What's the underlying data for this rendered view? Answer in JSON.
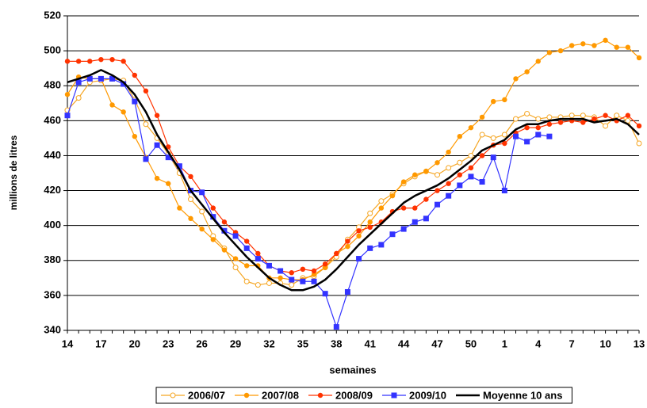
{
  "chart_data": {
    "type": "line",
    "y_label": "millions de litres",
    "x_label": "semaines",
    "categories": [
      "14",
      null,
      null,
      "17",
      null,
      null,
      "20",
      null,
      null,
      "23",
      null,
      null,
      "26",
      null,
      null,
      "29",
      null,
      null,
      "32",
      null,
      null,
      "35",
      null,
      null,
      "38",
      null,
      null,
      "41",
      null,
      null,
      "44",
      null,
      null,
      "47",
      null,
      null,
      "50",
      null,
      null,
      "1",
      null,
      null,
      "4",
      null,
      null,
      "7",
      null,
      null,
      "10",
      null,
      null,
      "13"
    ],
    "ylim": [
      340,
      520
    ],
    "yticks": [
      340,
      360,
      380,
      400,
      420,
      440,
      460,
      480,
      500,
      520
    ],
    "grid": true,
    "legend": "bottom",
    "series": [
      {
        "name": "2006/07",
        "color": "#f5a623",
        "marker": "open-circle",
        "values": [
          466,
          473,
          482,
          483,
          484,
          483,
          472,
          458,
          450,
          441,
          430,
          415,
          408,
          394,
          387,
          376,
          368,
          366,
          367,
          367,
          366,
          370,
          371,
          376,
          382,
          392,
          399,
          407,
          414,
          418,
          424,
          428,
          431,
          429,
          433,
          436,
          440,
          452,
          450,
          452,
          461,
          464,
          461,
          462,
          462,
          463,
          463,
          462,
          457,
          463,
          460,
          447
        ]
      },
      {
        "name": "2007/08",
        "color": "#ff9900",
        "marker": "circle",
        "values": [
          475,
          485,
          484,
          484,
          469,
          465,
          451,
          439,
          427,
          424,
          410,
          404,
          398,
          392,
          386,
          381,
          377,
          377,
          370,
          370,
          369,
          369,
          372,
          376,
          384,
          388,
          394,
          402,
          410,
          417,
          425,
          429,
          431,
          436,
          442,
          451,
          456,
          462,
          471,
          472,
          484,
          488,
          494,
          499,
          500,
          503,
          504,
          503,
          506,
          502,
          502,
          496
        ]
      },
      {
        "name": "2008/09",
        "color": "#ff3300",
        "marker": "circle",
        "values": [
          494,
          494,
          494,
          495,
          495,
          494,
          486,
          477,
          463,
          445,
          434,
          428,
          419,
          410,
          402,
          396,
          391,
          384,
          377,
          374,
          373,
          375,
          374,
          378,
          384,
          391,
          397,
          399,
          402,
          408,
          410,
          410,
          415,
          420,
          424,
          429,
          433,
          440,
          446,
          447,
          453,
          456,
          456,
          458,
          459,
          460,
          459,
          461,
          463,
          460,
          463,
          457
        ]
      },
      {
        "name": "2009/10",
        "color": "#3333ff",
        "marker": "square",
        "values": [
          463,
          482,
          484,
          484,
          484,
          481,
          471,
          438,
          446,
          439,
          434,
          420,
          419,
          405,
          397,
          394,
          387,
          381,
          377,
          374,
          369,
          368,
          368,
          361,
          342,
          362,
          381,
          387,
          389,
          395,
          398,
          402,
          404,
          412,
          417,
          423,
          428,
          425,
          439,
          420,
          451,
          448,
          452,
          451,
          null,
          null,
          null,
          null,
          null,
          null,
          null,
          null
        ]
      },
      {
        "name": "Moyenne 10 ans",
        "color": "#000000",
        "marker": "none",
        "values": [
          482,
          484,
          486,
          489,
          486,
          482,
          475,
          465,
          452,
          442,
          432,
          420,
          412,
          404,
          396,
          389,
          382,
          376,
          370,
          366,
          363,
          363,
          365,
          369,
          375,
          382,
          389,
          395,
          401,
          407,
          413,
          417,
          420,
          423,
          427,
          432,
          437,
          443,
          446,
          449,
          455,
          458,
          458,
          460,
          461,
          461,
          461,
          459,
          460,
          461,
          458,
          452
        ]
      }
    ]
  }
}
